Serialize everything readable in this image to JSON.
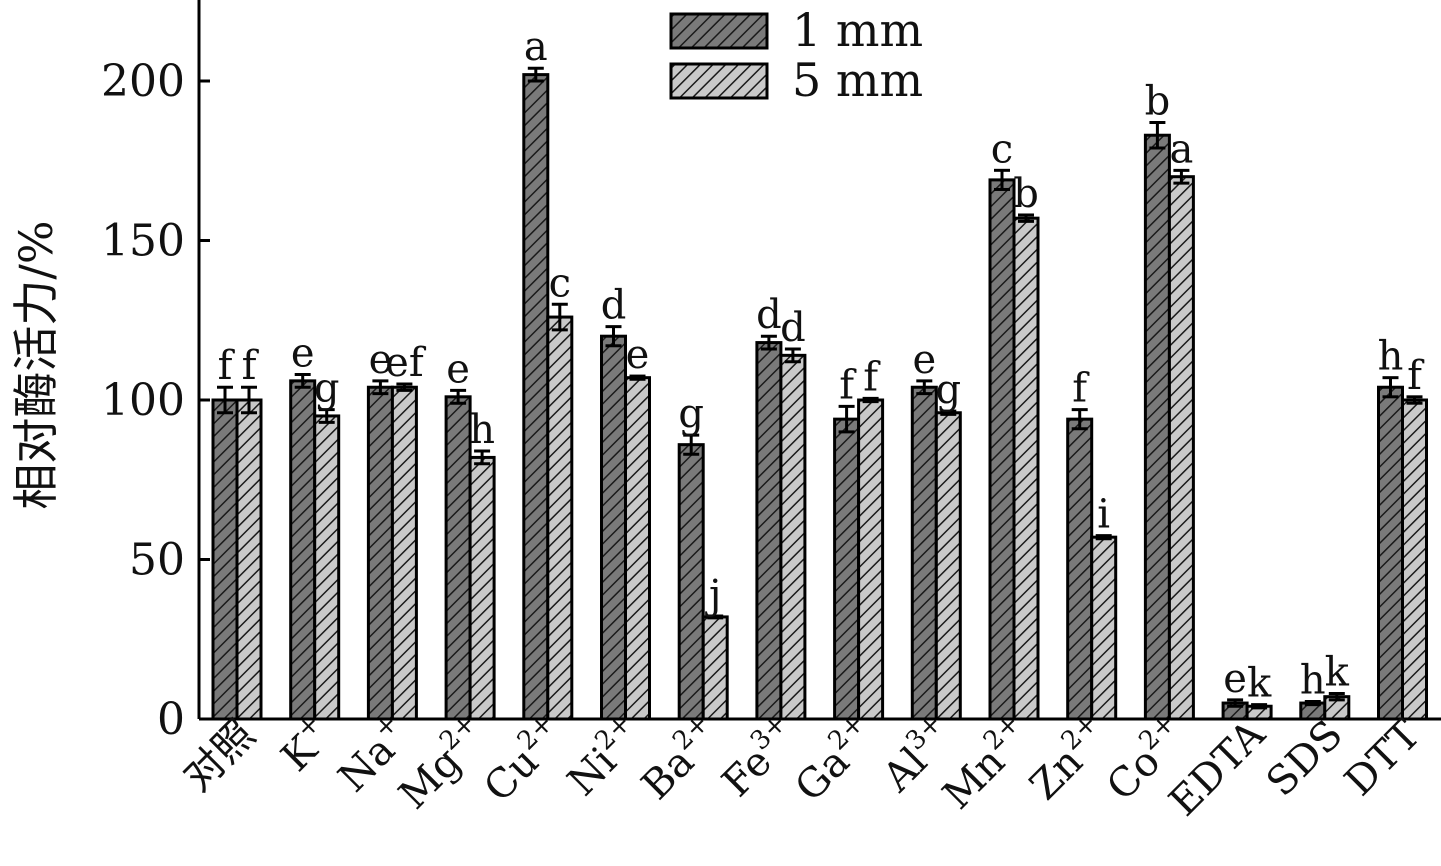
{
  "chart_data": {
    "type": "bar",
    "ylabel": "相对酶活力/%",
    "xlabel": "",
    "ylim": [
      0,
      220
    ],
    "yticks": [
      0,
      50,
      100,
      150,
      200
    ],
    "categories": [
      {
        "base": "对照",
        "sup": ""
      },
      {
        "base": "K",
        "sup": "+"
      },
      {
        "base": "Na",
        "sup": "+"
      },
      {
        "base": "Mg",
        "sup": "2+"
      },
      {
        "base": "Cu",
        "sup": "2+"
      },
      {
        "base": "Ni",
        "sup": "2+"
      },
      {
        "base": "Ba",
        "sup": "2+"
      },
      {
        "base": "Fe",
        "sup": "3+"
      },
      {
        "base": "Ga",
        "sup": "2+"
      },
      {
        "base": "Al",
        "sup": "3+"
      },
      {
        "base": "Mn",
        "sup": "2+"
      },
      {
        "base": "Zn",
        "sup": "2+"
      },
      {
        "base": "Co",
        "sup": "2+"
      },
      {
        "base": "EDTA",
        "sup": ""
      },
      {
        "base": "SDS",
        "sup": ""
      },
      {
        "base": "DTT",
        "sup": ""
      }
    ],
    "series": [
      {
        "name": "1 mm",
        "fill": "#7a7a7a",
        "values": [
          100,
          106,
          104,
          101,
          202,
          120,
          86,
          118,
          94,
          104,
          169,
          94,
          183,
          5,
          5,
          104
        ],
        "errors": [
          4,
          2,
          2,
          2,
          2,
          3,
          3,
          2,
          4,
          2,
          3,
          3,
          4,
          1,
          0.5,
          3
        ],
        "letters": [
          "f",
          "e",
          "e",
          "e",
          "a",
          "d",
          "g",
          "d",
          "f",
          "e",
          "c",
          "f",
          "b",
          "e",
          "h",
          "h"
        ]
      },
      {
        "name": "5 mm",
        "fill": "#c2c2c2",
        "values": [
          100,
          95,
          104,
          82,
          126,
          107,
          32,
          114,
          100,
          96,
          157,
          57,
          170,
          4,
          7,
          100
        ],
        "errors": [
          4,
          2,
          1,
          2,
          4,
          0.5,
          0.3,
          2,
          0.5,
          0.5,
          1,
          0.5,
          2,
          0.5,
          1,
          1
        ],
        "letters": [
          "f",
          "g",
          "ef",
          "h",
          "c",
          "e",
          "j",
          "d",
          "f",
          "g",
          "b",
          "i",
          "a",
          "k",
          "k",
          "f"
        ]
      }
    ],
    "legend_position": "top-center",
    "grid": false
  }
}
